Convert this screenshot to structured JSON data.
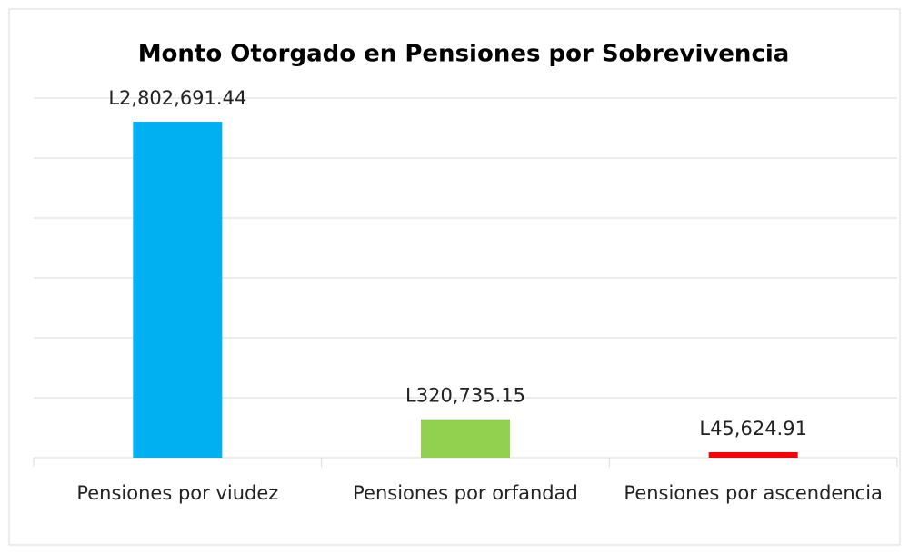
{
  "chart_data": {
    "type": "bar",
    "title": "Monto Otorgado en Pensiones por Sobrevivencia",
    "categories": [
      "Pensiones por viudez",
      "Pensiones por orfandad",
      "Pensiones por ascendencia"
    ],
    "values": [
      2802691.44,
      320735.15,
      45624.91
    ],
    "value_labels": [
      "L2,802,691.44",
      "L320,735.15",
      "L45,624.91"
    ],
    "colors": [
      "#00b0f0",
      "#92d050",
      "#ff0000"
    ],
    "ylim": [
      0,
      3000000
    ],
    "yticks": [
      0,
      500000,
      1000000,
      1500000,
      2000000,
      2500000,
      3000000
    ],
    "grid": true
  }
}
